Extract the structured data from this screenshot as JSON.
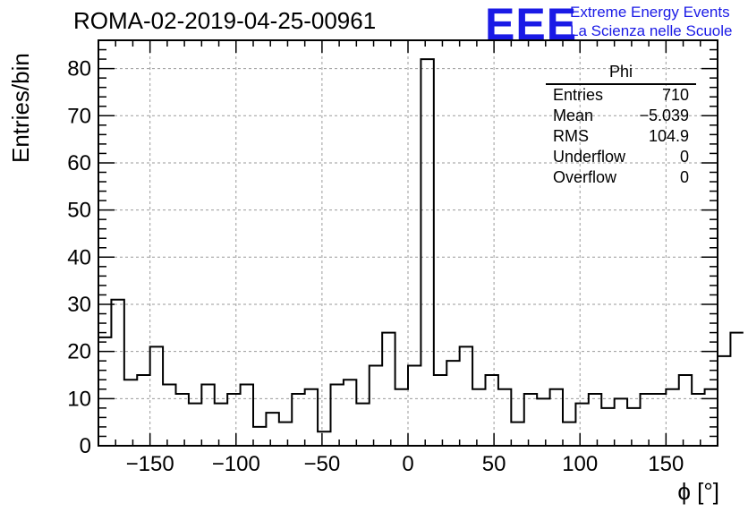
{
  "header": {
    "title": "ROMA-02-2019-04-25-00961",
    "logo": "EEE",
    "logo_line1": "Extreme Energy Events",
    "logo_line2": "La Scienza nelle Scuole"
  },
  "stats_box": {
    "title": "Phi",
    "rows": [
      {
        "label": "Entries",
        "value": "710"
      },
      {
        "label": "Mean",
        "value": "−5.039"
      },
      {
        "label": "RMS",
        "value": "104.9"
      },
      {
        "label": "Underflow",
        "value": "0"
      },
      {
        "label": "Overflow",
        "value": "0"
      }
    ]
  },
  "chart_data": {
    "type": "histogram",
    "title": "ROMA-02-2019-04-25-00961",
    "xlabel": "ϕ [°]",
    "ylabel": "Entries/bin",
    "xlim": [
      -180,
      180
    ],
    "ylim": [
      0,
      86
    ],
    "bin_width": 7.5,
    "bin_start": -180,
    "values": [
      23,
      31,
      14,
      15,
      21,
      13,
      11,
      9,
      13,
      9,
      11,
      13,
      4,
      7,
      5,
      11,
      12,
      3,
      13,
      14,
      9,
      17,
      24,
      12,
      17,
      82,
      15,
      18,
      21,
      12,
      15,
      12,
      5,
      11,
      10,
      12,
      5,
      9,
      11,
      8,
      10,
      8,
      11,
      11,
      12,
      15,
      11,
      12,
      19,
      24
    ],
    "x_ticks": [
      -150,
      -100,
      -50,
      0,
      50,
      100,
      150
    ],
    "x_tick_labels": [
      "−150",
      "−100",
      "−50",
      "0",
      "50",
      "100",
      "150"
    ],
    "y_ticks": [
      0,
      10,
      20,
      30,
      40,
      50,
      60,
      70,
      80
    ],
    "y_tick_labels": [
      "0",
      "10",
      "20",
      "30",
      "40",
      "50",
      "60",
      "70",
      "80"
    ],
    "grid": true,
    "legend": "stats box top-right"
  }
}
